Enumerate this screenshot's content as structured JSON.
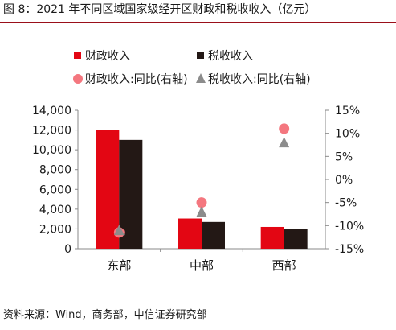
{
  "title": "图 8：2021 年不同区域国家级经开区财政和税收收入（亿元）",
  "source": "资料来源：Wind，商务部，中信证券研究部",
  "chart_data": {
    "type": "bar",
    "categories": [
      "东部",
      "中部",
      "西部"
    ],
    "series": [
      {
        "name": "财政收入",
        "type": "bar",
        "axis": "left",
        "color": "#e30613",
        "values": [
          12000,
          3050,
          2200
        ]
      },
      {
        "name": "税收收入",
        "type": "bar",
        "axis": "left",
        "color": "#231815",
        "values": [
          11000,
          2700,
          2000
        ]
      },
      {
        "name": "财政收入:同比(右轴)",
        "type": "scatter",
        "marker": "circle",
        "axis": "right",
        "color": "#f4777f",
        "values": [
          -11.5,
          -5.0,
          11.0
        ]
      },
      {
        "name": "税收收入:同比(右轴)",
        "type": "scatter",
        "marker": "triangle",
        "axis": "right",
        "color": "#8c8c8c",
        "values": [
          -11.0,
          -7.0,
          8.0
        ]
      }
    ],
    "left_axis": {
      "min": 0,
      "max": 14000,
      "step": 2000,
      "tick_labels": [
        "0",
        "2,000",
        "4,000",
        "6,000",
        "8,000",
        "10,000",
        "12,000",
        "14,000"
      ]
    },
    "right_axis": {
      "min": -15,
      "max": 15,
      "step": 5,
      "tick_labels": [
        "-15%",
        "-10%",
        "-5%",
        "0%",
        "5%",
        "10%",
        "15%"
      ]
    },
    "legend_position": "top",
    "grid": false
  }
}
